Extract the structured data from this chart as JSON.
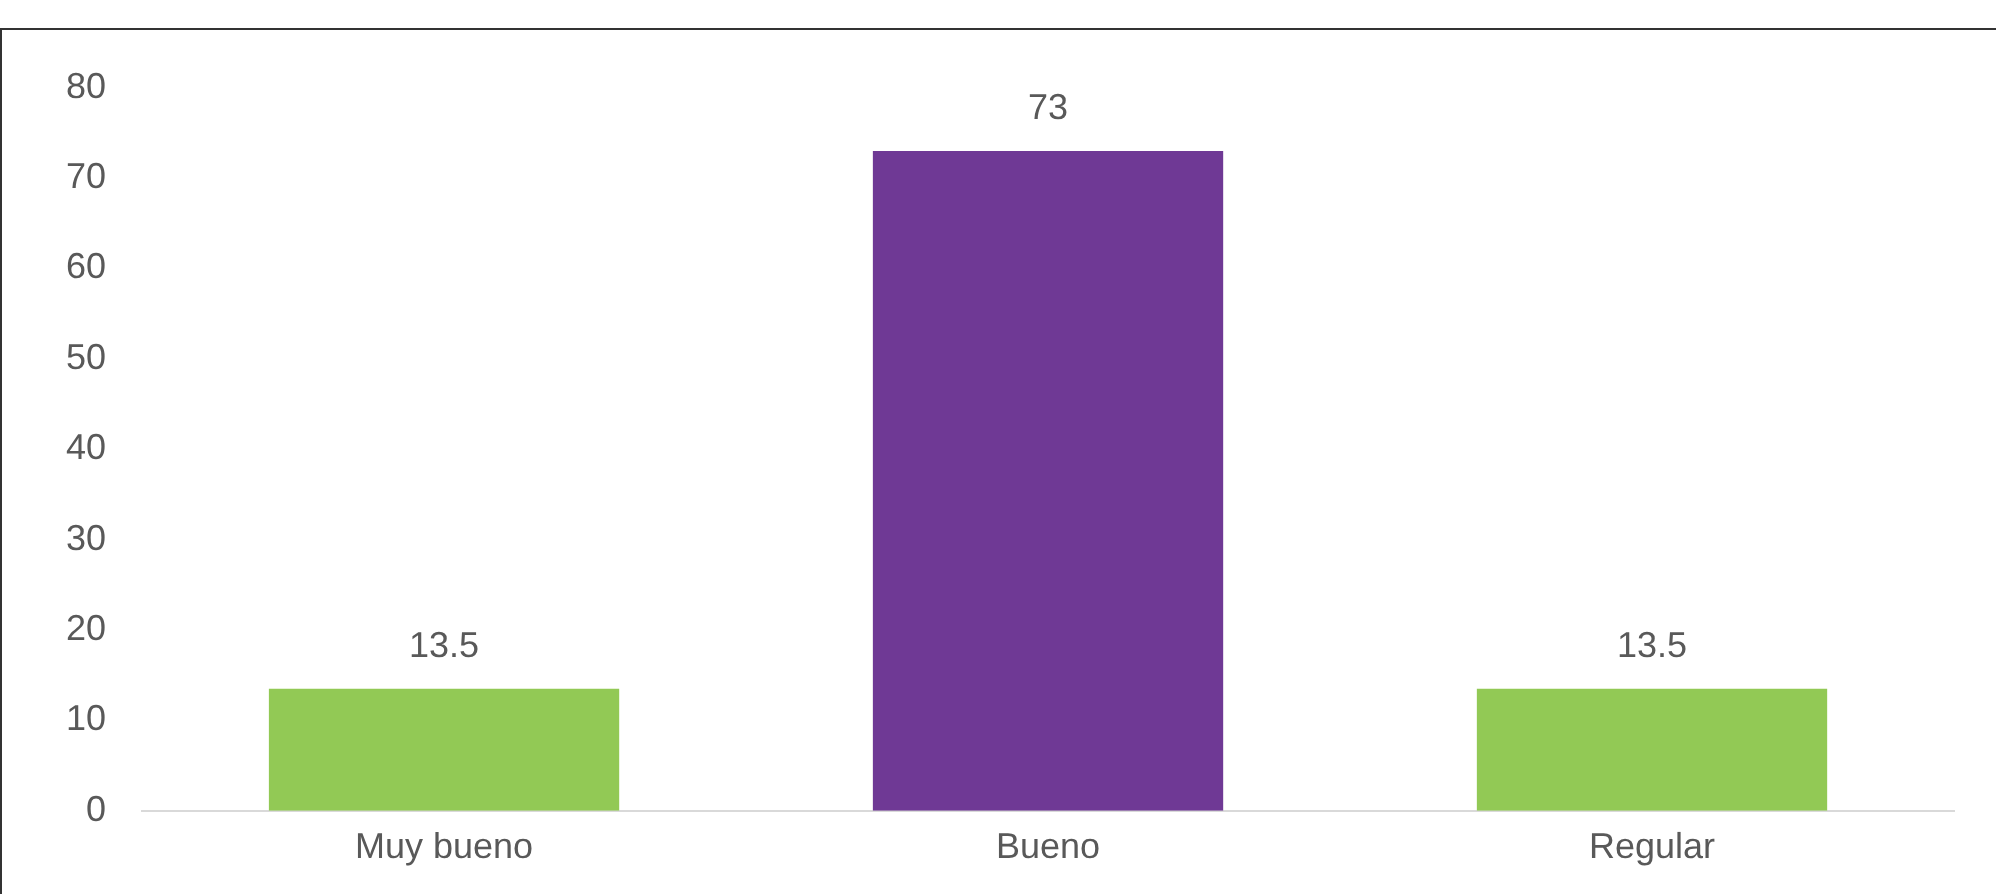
{
  "chart_data": {
    "type": "bar",
    "categories": [
      "Muy bueno",
      "Bueno",
      "Regular"
    ],
    "values": [
      13.5,
      73,
      13.5
    ],
    "colors": [
      "#92c955",
      "#6f3995",
      "#92c955"
    ],
    "ylim": [
      0,
      80
    ],
    "yticks": [
      0,
      10,
      20,
      30,
      40,
      50,
      60,
      70,
      80
    ],
    "grid": false,
    "legend": false,
    "data_labels": true
  }
}
